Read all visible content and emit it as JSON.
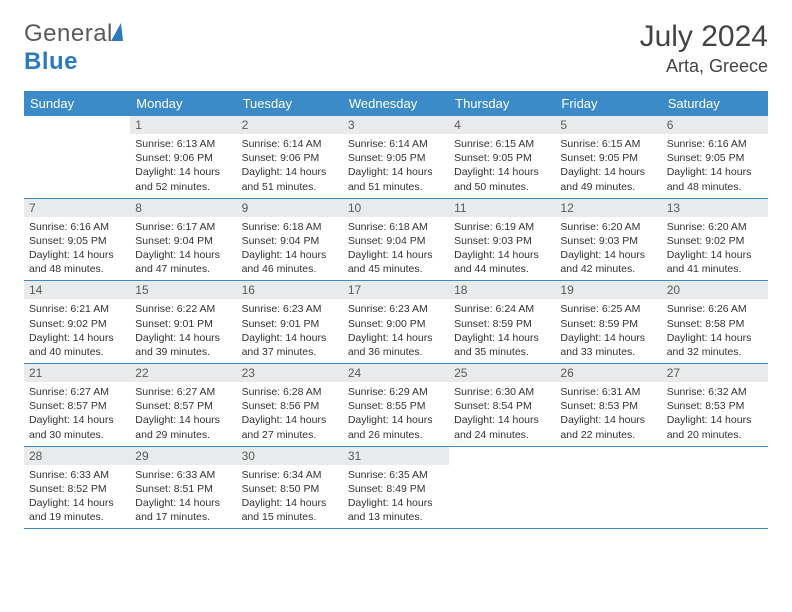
{
  "brand": {
    "part1": "General",
    "part2": "Blue"
  },
  "title": {
    "month_year": "July 2024",
    "location": "Arta, Greece"
  },
  "colors": {
    "header_bg": "#3b8bc9",
    "header_text": "#ffffff",
    "daynum_bg": "#e9eaeb",
    "daynum_text": "#5a5a5a",
    "body_text": "#333333",
    "row_border": "#3b8bc9",
    "brand_gray": "#5a5a5a",
    "brand_blue": "#2d7bbf",
    "page_bg": "#ffffff"
  },
  "typography": {
    "title_fontsize": 30,
    "location_fontsize": 18,
    "header_cell_fontsize": 13,
    "daynum_fontsize": 12,
    "daydata_fontsize": 10.5
  },
  "layout": {
    "columns": 7,
    "rows": 5,
    "first_weekday_index": 1
  },
  "dow": [
    "Sunday",
    "Monday",
    "Tuesday",
    "Wednesday",
    "Thursday",
    "Friday",
    "Saturday"
  ],
  "days": [
    {
      "n": "1",
      "sr": "6:13 AM",
      "ss": "9:06 PM",
      "dl": "14 hours and 52 minutes."
    },
    {
      "n": "2",
      "sr": "6:14 AM",
      "ss": "9:06 PM",
      "dl": "14 hours and 51 minutes."
    },
    {
      "n": "3",
      "sr": "6:14 AM",
      "ss": "9:05 PM",
      "dl": "14 hours and 51 minutes."
    },
    {
      "n": "4",
      "sr": "6:15 AM",
      "ss": "9:05 PM",
      "dl": "14 hours and 50 minutes."
    },
    {
      "n": "5",
      "sr": "6:15 AM",
      "ss": "9:05 PM",
      "dl": "14 hours and 49 minutes."
    },
    {
      "n": "6",
      "sr": "6:16 AM",
      "ss": "9:05 PM",
      "dl": "14 hours and 48 minutes."
    },
    {
      "n": "7",
      "sr": "6:16 AM",
      "ss": "9:05 PM",
      "dl": "14 hours and 48 minutes."
    },
    {
      "n": "8",
      "sr": "6:17 AM",
      "ss": "9:04 PM",
      "dl": "14 hours and 47 minutes."
    },
    {
      "n": "9",
      "sr": "6:18 AM",
      "ss": "9:04 PM",
      "dl": "14 hours and 46 minutes."
    },
    {
      "n": "10",
      "sr": "6:18 AM",
      "ss": "9:04 PM",
      "dl": "14 hours and 45 minutes."
    },
    {
      "n": "11",
      "sr": "6:19 AM",
      "ss": "9:03 PM",
      "dl": "14 hours and 44 minutes."
    },
    {
      "n": "12",
      "sr": "6:20 AM",
      "ss": "9:03 PM",
      "dl": "14 hours and 42 minutes."
    },
    {
      "n": "13",
      "sr": "6:20 AM",
      "ss": "9:02 PM",
      "dl": "14 hours and 41 minutes."
    },
    {
      "n": "14",
      "sr": "6:21 AM",
      "ss": "9:02 PM",
      "dl": "14 hours and 40 minutes."
    },
    {
      "n": "15",
      "sr": "6:22 AM",
      "ss": "9:01 PM",
      "dl": "14 hours and 39 minutes."
    },
    {
      "n": "16",
      "sr": "6:23 AM",
      "ss": "9:01 PM",
      "dl": "14 hours and 37 minutes."
    },
    {
      "n": "17",
      "sr": "6:23 AM",
      "ss": "9:00 PM",
      "dl": "14 hours and 36 minutes."
    },
    {
      "n": "18",
      "sr": "6:24 AM",
      "ss": "8:59 PM",
      "dl": "14 hours and 35 minutes."
    },
    {
      "n": "19",
      "sr": "6:25 AM",
      "ss": "8:59 PM",
      "dl": "14 hours and 33 minutes."
    },
    {
      "n": "20",
      "sr": "6:26 AM",
      "ss": "8:58 PM",
      "dl": "14 hours and 32 minutes."
    },
    {
      "n": "21",
      "sr": "6:27 AM",
      "ss": "8:57 PM",
      "dl": "14 hours and 30 minutes."
    },
    {
      "n": "22",
      "sr": "6:27 AM",
      "ss": "8:57 PM",
      "dl": "14 hours and 29 minutes."
    },
    {
      "n": "23",
      "sr": "6:28 AM",
      "ss": "8:56 PM",
      "dl": "14 hours and 27 minutes."
    },
    {
      "n": "24",
      "sr": "6:29 AM",
      "ss": "8:55 PM",
      "dl": "14 hours and 26 minutes."
    },
    {
      "n": "25",
      "sr": "6:30 AM",
      "ss": "8:54 PM",
      "dl": "14 hours and 24 minutes."
    },
    {
      "n": "26",
      "sr": "6:31 AM",
      "ss": "8:53 PM",
      "dl": "14 hours and 22 minutes."
    },
    {
      "n": "27",
      "sr": "6:32 AM",
      "ss": "8:53 PM",
      "dl": "14 hours and 20 minutes."
    },
    {
      "n": "28",
      "sr": "6:33 AM",
      "ss": "8:52 PM",
      "dl": "14 hours and 19 minutes."
    },
    {
      "n": "29",
      "sr": "6:33 AM",
      "ss": "8:51 PM",
      "dl": "14 hours and 17 minutes."
    },
    {
      "n": "30",
      "sr": "6:34 AM",
      "ss": "8:50 PM",
      "dl": "14 hours and 15 minutes."
    },
    {
      "n": "31",
      "sr": "6:35 AM",
      "ss": "8:49 PM",
      "dl": "14 hours and 13 minutes."
    }
  ],
  "labels": {
    "sunrise": "Sunrise: ",
    "sunset": "Sunset: ",
    "daylight": "Daylight: "
  }
}
